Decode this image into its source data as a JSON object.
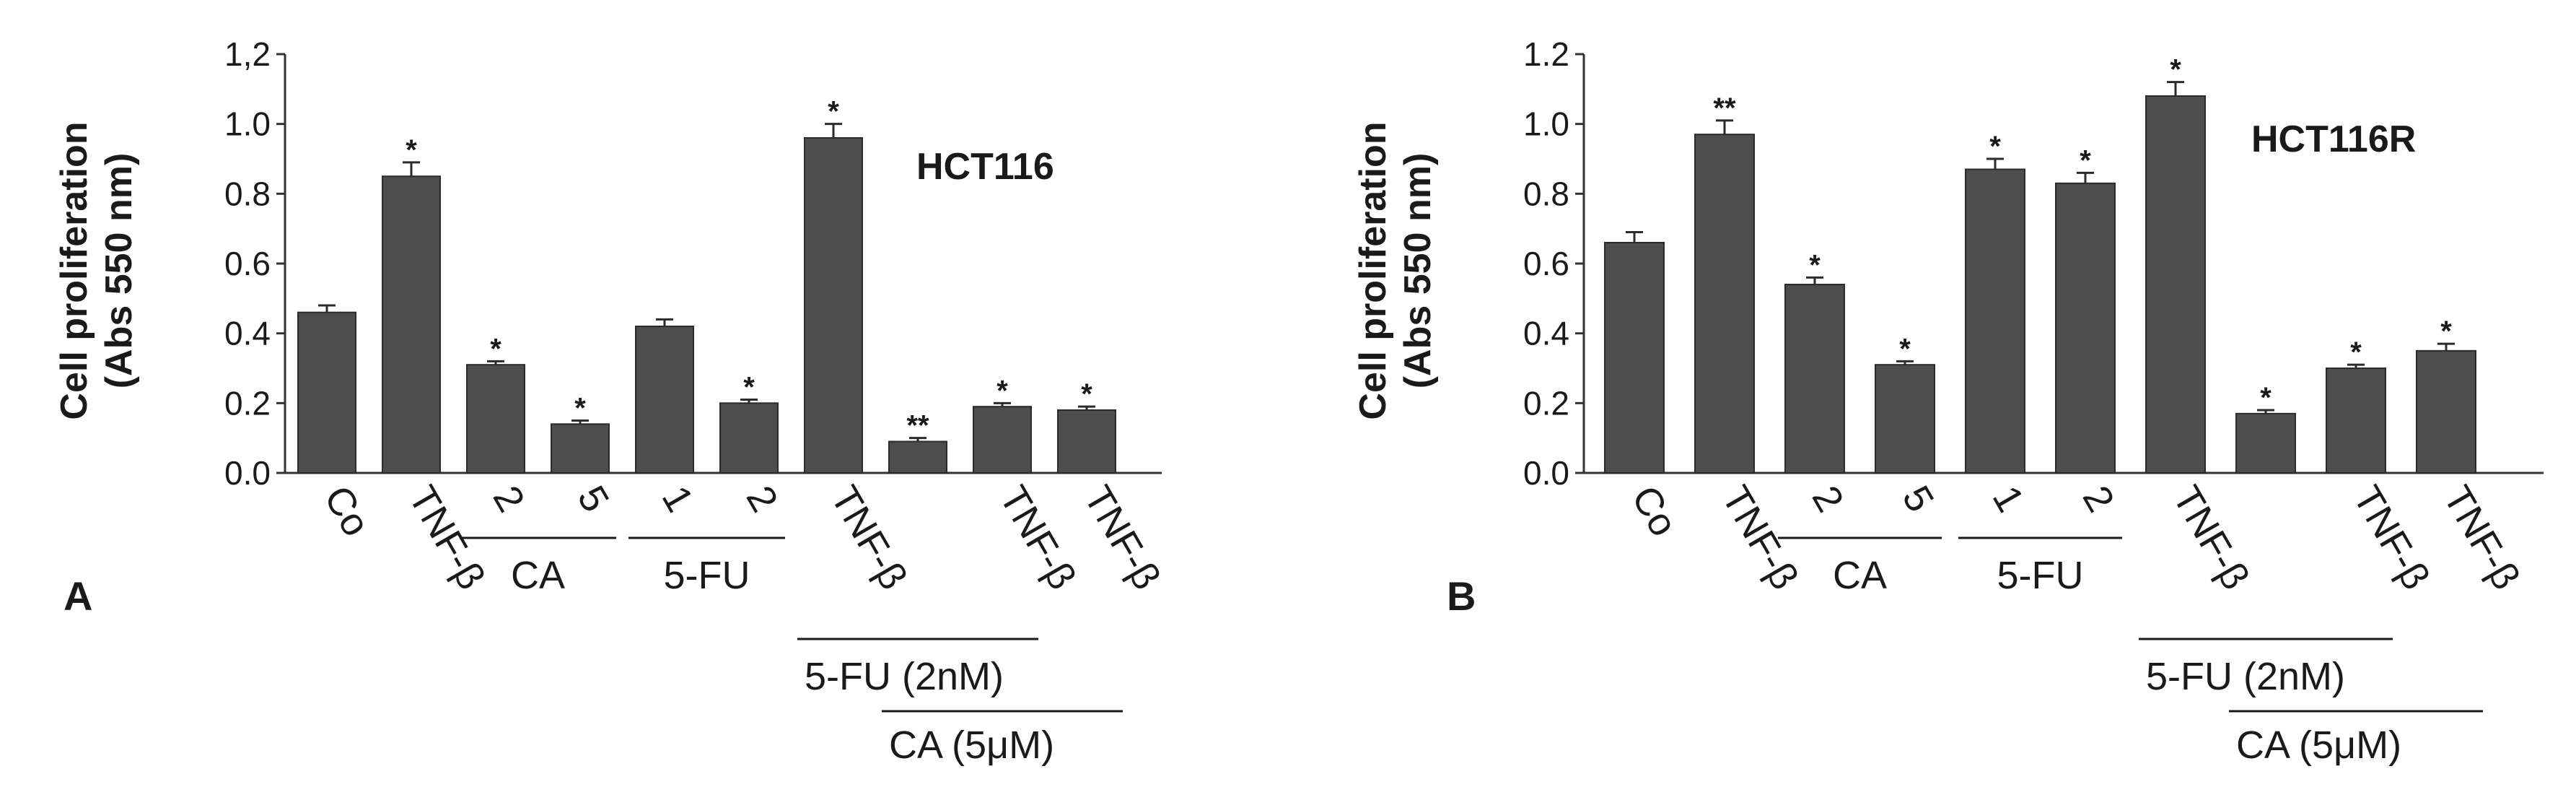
{
  "chart_data": [
    {
      "type": "bar",
      "panel": "A",
      "cell_line": "HCT116",
      "ylabel": [
        "Cell proliferation",
        "(Abs 550 nm)"
      ],
      "ylim": [
        0,
        1.2
      ],
      "yticks": [
        "0.0",
        "0.2",
        "0.4",
        "0.6",
        "0.8",
        "1.0",
        "1,2"
      ],
      "grid": false,
      "categories": [
        "Co",
        "TNF-β",
        "2",
        "5",
        "1",
        "2",
        "TNF-β",
        "",
        "TNF-β",
        "TNF-β"
      ],
      "values": [
        0.46,
        0.85,
        0.31,
        0.14,
        0.42,
        0.2,
        0.96,
        0.09,
        0.19,
        0.18
      ],
      "errors": [
        0.02,
        0.04,
        0.01,
        0.01,
        0.02,
        0.01,
        0.04,
        0.01,
        0.01,
        0.01
      ],
      "significance": [
        "",
        "*",
        "*",
        "*",
        "",
        "*",
        "*",
        "**",
        "*",
        "*"
      ],
      "groups": [
        {
          "label": "CA",
          "from": 2,
          "to": 3
        },
        {
          "label": "5-FU",
          "from": 4,
          "to": 5
        },
        {
          "label": "5-FU (2nM)",
          "from": 6,
          "to": 8
        },
        {
          "label": "CA (5μM)",
          "from": 7,
          "to": 9
        }
      ],
      "bar_color": "#4d4d4d"
    },
    {
      "type": "bar",
      "panel": "B",
      "cell_line": "HCT116R",
      "ylabel": [
        "Cell proliferation",
        "(Abs 550 nm)"
      ],
      "ylim": [
        0,
        1.2
      ],
      "yticks": [
        "0.0",
        "0.2",
        "0.4",
        "0.6",
        "0.8",
        "1.0",
        "1.2"
      ],
      "grid": false,
      "categories": [
        "Co",
        "TNF-β",
        "2",
        "5",
        "1",
        "2",
        "TNF-β",
        "",
        "TNF-β",
        "TNF-β"
      ],
      "values": [
        0.66,
        0.97,
        0.54,
        0.31,
        0.87,
        0.83,
        1.08,
        0.17,
        0.3,
        0.35
      ],
      "errors": [
        0.03,
        0.04,
        0.02,
        0.01,
        0.03,
        0.03,
        0.04,
        0.01,
        0.01,
        0.02
      ],
      "significance": [
        "",
        "**",
        "*",
        "*",
        "*",
        "*",
        "*",
        "*",
        "*",
        "*"
      ],
      "groups": [
        {
          "label": "CA",
          "from": 2,
          "to": 3
        },
        {
          "label": "5-FU",
          "from": 4,
          "to": 5
        },
        {
          "label": "5-FU (2nM)",
          "from": 6,
          "to": 8
        },
        {
          "label": "CA (5μM)",
          "from": 7,
          "to": 9
        }
      ],
      "bar_color": "#4d4d4d"
    }
  ]
}
